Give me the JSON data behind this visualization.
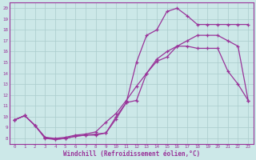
{
  "title": "",
  "xlabel": "Windchill (Refroidissement éolien,°C)",
  "ylabel": "",
  "bg_color": "#cce8e8",
  "line_color": "#993399",
  "grid_color": "#aacccc",
  "xlim": [
    -0.5,
    23.5
  ],
  "ylim": [
    7.5,
    20.5
  ],
  "xticks": [
    0,
    1,
    2,
    3,
    4,
    5,
    6,
    7,
    8,
    9,
    10,
    11,
    12,
    13,
    14,
    15,
    16,
    17,
    18,
    19,
    20,
    21,
    22,
    23
  ],
  "yticks": [
    8,
    9,
    10,
    11,
    12,
    13,
    14,
    15,
    16,
    17,
    18,
    19,
    20
  ],
  "line1_x": [
    0,
    1,
    2,
    3,
    4,
    5,
    6,
    7,
    8,
    9,
    10,
    11,
    12,
    13,
    14,
    15,
    16,
    17,
    18,
    19,
    20,
    21,
    22,
    23
  ],
  "line1_y": [
    9.7,
    10.1,
    9.2,
    8.0,
    7.9,
    8.0,
    8.2,
    8.3,
    8.3,
    8.5,
    10.0,
    11.3,
    15.0,
    17.5,
    18.0,
    19.7,
    20.0,
    19.3,
    18.5,
    18.5,
    18.5,
    18.5,
    18.5,
    18.5
  ],
  "line2_x": [
    0,
    1,
    2,
    3,
    4,
    5,
    6,
    7,
    8,
    9,
    10,
    11,
    12,
    13,
    14,
    15,
    16,
    17,
    18,
    19,
    20,
    21,
    22,
    23
  ],
  "line2_y": [
    9.7,
    10.1,
    9.2,
    8.1,
    7.9,
    8.0,
    8.2,
    8.3,
    8.4,
    8.5,
    9.8,
    11.3,
    11.5,
    14.0,
    15.1,
    15.5,
    16.5,
    16.5,
    16.3,
    16.3,
    16.3,
    14.2,
    13.0,
    11.5
  ],
  "line3_x": [
    0,
    1,
    2,
    3,
    4,
    5,
    6,
    7,
    8,
    9,
    10,
    11,
    12,
    13,
    14,
    15,
    16,
    17,
    18,
    19,
    20,
    21,
    22,
    23
  ],
  "line3_y": [
    9.7,
    10.1,
    9.2,
    8.1,
    8.0,
    8.1,
    8.3,
    8.4,
    8.6,
    9.5,
    10.3,
    11.5,
    12.8,
    14.0,
    15.3,
    16.0,
    16.5,
    17.0,
    17.5,
    17.5,
    17.5,
    17.0,
    16.5,
    11.5
  ]
}
